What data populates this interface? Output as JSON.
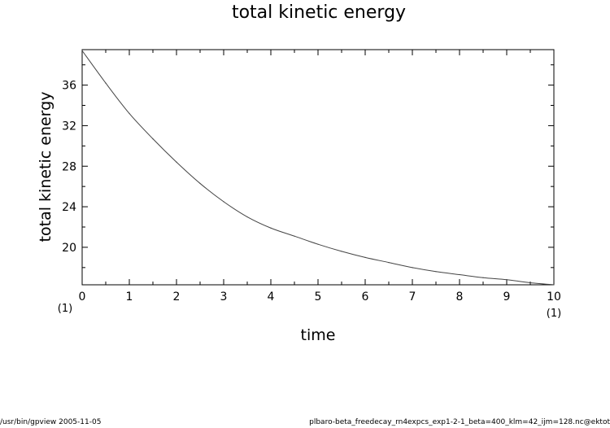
{
  "chart_data": {
    "type": "line",
    "title": "total kinetic energy",
    "xlabel": "time",
    "ylabel": "total kinetic energy",
    "xlim": [
      0,
      10
    ],
    "ylim": [
      16.3,
      39.5
    ],
    "x_ticks": [
      "0",
      "1",
      "2",
      "3",
      "4",
      "5",
      "6",
      "7",
      "8",
      "9",
      "10"
    ],
    "y_ticks": [
      "20",
      "24",
      "28",
      "32",
      "36"
    ],
    "x_unit_left": "(1)",
    "x_unit_right": "(1)",
    "grid": false,
    "series": [
      {
        "x": [
          0,
          0.5,
          1,
          1.5,
          2,
          2.5,
          3,
          3.5,
          4,
          4.5,
          5,
          5.5,
          6,
          6.5,
          7,
          7.5,
          8,
          8.5,
          9,
          9.5,
          10
        ],
        "values": [
          39.4,
          36.2,
          33.2,
          30.7,
          28.4,
          26.3,
          24.5,
          23.0,
          21.9,
          21.1,
          20.3,
          19.6,
          19.0,
          18.5,
          18.0,
          17.6,
          17.3,
          17.0,
          16.8,
          16.5,
          16.3
        ]
      }
    ]
  },
  "footer": {
    "left": "/usr/bin/gpview   2005-11-05",
    "right": "plbaro-beta_freedecay_rn4expcs_exp1-2-1_beta=400_klm=42_ijm=128.nc@ektot"
  }
}
